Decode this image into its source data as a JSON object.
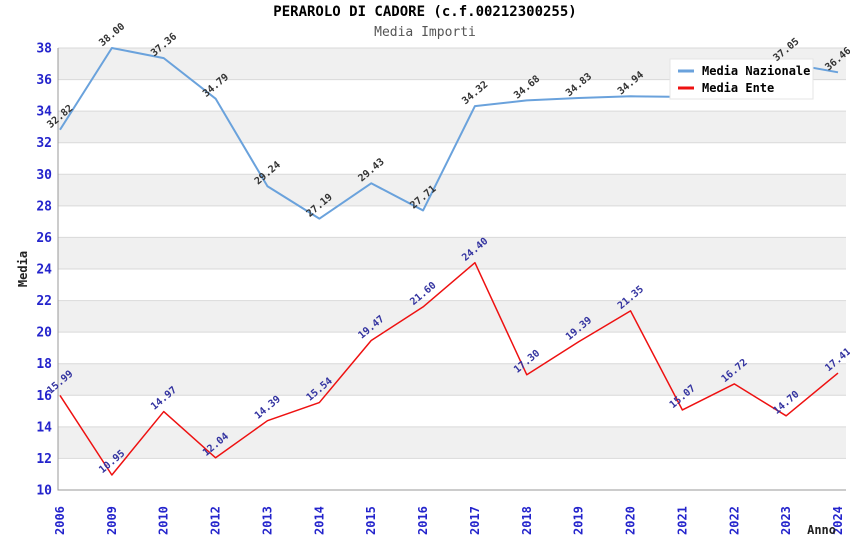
{
  "chart_data": {
    "type": "line",
    "title": "PERAROLO DI CADORE (c.f.00212300255)",
    "subtitle": "Media Importi",
    "xlabel": "Anno",
    "ylabel": "Media",
    "ylim": [
      10,
      38
    ],
    "ytick_step": 2,
    "grid": true,
    "legend_position": "top-right",
    "categories": [
      "2006",
      "2009",
      "2010",
      "2012",
      "2013",
      "2014",
      "2015",
      "2016",
      "2017",
      "2018",
      "2019",
      "2020",
      "2021",
      "2022",
      "2023",
      "2024"
    ],
    "series": [
      {
        "name": "Media Nazionale",
        "color": "#6aa2dc",
        "label_color": "#333333",
        "values": [
          32.82,
          38.0,
          37.36,
          34.79,
          29.24,
          27.19,
          29.43,
          27.71,
          34.32,
          34.68,
          34.83,
          34.94,
          34.9,
          36.1,
          37.05,
          36.46
        ],
        "labels": [
          "32.82",
          "38.00",
          "37.36",
          "34.79",
          "29.24",
          "27.19",
          "29.43",
          "27.71",
          "34.32",
          "34.68",
          "34.83",
          "34.94",
          null,
          null,
          "37.05",
          "36.46"
        ],
        "labels_hidden_by_legend": [
          "2021",
          "2022"
        ]
      },
      {
        "name": "Media Ente",
        "color": "#ee1111",
        "label_color": "#3333a0",
        "values": [
          15.99,
          10.95,
          14.97,
          12.04,
          14.39,
          15.54,
          19.47,
          21.6,
          24.4,
          17.3,
          19.39,
          21.35,
          15.07,
          16.72,
          14.7,
          17.41
        ],
        "labels": [
          "15.99",
          "10.95",
          "14.97",
          "12.04",
          "14.39",
          "15.54",
          "19.47",
          "21.60",
          "24.40",
          "17.30",
          "19.39",
          "21.35",
          "15.07",
          "16.72",
          "14.70",
          "17.41"
        ]
      }
    ],
    "colors": {
      "band_gray": "#f0f0f0",
      "band_white": "#ffffff",
      "gridline": "#d9d9d9",
      "axis": "#999999",
      "tick_label": "#2424cc"
    }
  }
}
